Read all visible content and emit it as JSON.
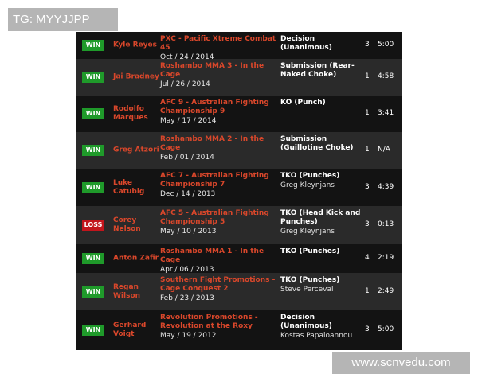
{
  "watermarks": {
    "top": "TG: MYYJJPP",
    "bottom": "www.scnvedu.com"
  },
  "colors": {
    "win": "#1f9a2a",
    "loss": "#c2151c",
    "accent": "#d9472b"
  },
  "fights": [
    {
      "result": "WIN",
      "opponent": "Kyle Reyes",
      "event": "PXC - Pacific Xtreme Combat 45",
      "date": "Oct / 24 / 2014",
      "method": "Decision (Unanimous)",
      "referee": "",
      "round": "3",
      "time": "5:00"
    },
    {
      "result": "WIN",
      "opponent": "Jai Bradney",
      "event": "Roshambo MMA 3 - In the Cage",
      "date": "Jul / 26 / 2014",
      "method": "Submission (Rear-Naked Choke)",
      "referee": "",
      "round": "1",
      "time": "4:58"
    },
    {
      "result": "WIN",
      "opponent": "Rodolfo Marques",
      "event": "AFC 9 - Australian Fighting Championship 9",
      "date": "May / 17 / 2014",
      "method": "KO (Punch)",
      "referee": "",
      "round": "1",
      "time": "3:41"
    },
    {
      "result": "WIN",
      "opponent": "Greg Atzori",
      "event": "Roshambo MMA 2 - In the Cage",
      "date": "Feb / 01 / 2014",
      "method": "Submission (Guillotine Choke)",
      "referee": "",
      "round": "1",
      "time": "N/A"
    },
    {
      "result": "WIN",
      "opponent": "Luke Catubig",
      "event": "AFC 7 - Australian Fighting Championship 7",
      "date": "Dec / 14 / 2013",
      "method": "TKO (Punches)",
      "referee": "Greg Kleynjans",
      "round": "3",
      "time": "4:39"
    },
    {
      "result": "LOSS",
      "opponent": "Corey Nelson",
      "event": "AFC 5 - Australian Fighting Championship 5",
      "date": "May / 10 / 2013",
      "method": "TKO (Head Kick and Punches)",
      "referee": "Greg Kleynjans",
      "round": "3",
      "time": "0:13"
    },
    {
      "result": "WIN",
      "opponent": "Anton Zafir",
      "event": "Roshambo MMA 1 - In the Cage",
      "date": "Apr / 06 / 2013",
      "method": "TKO (Punches)",
      "referee": "",
      "round": "4",
      "time": "2:19"
    },
    {
      "result": "WIN",
      "opponent": "Regan Wilson",
      "event": "Southern Fight Promotions - Cage Conquest 2",
      "date": "Feb / 23 / 2013",
      "method": "TKO (Punches)",
      "referee": "Steve Perceval",
      "round": "1",
      "time": "2:49"
    },
    {
      "result": "WIN",
      "opponent": "Gerhard Voigt",
      "event": "Revolution Promotions - Revolution at the Roxy",
      "date": "May / 19 / 2012",
      "method": "Decision (Unanimous)",
      "referee": "Kostas Papaioannou",
      "round": "3",
      "time": "5:00"
    }
  ]
}
